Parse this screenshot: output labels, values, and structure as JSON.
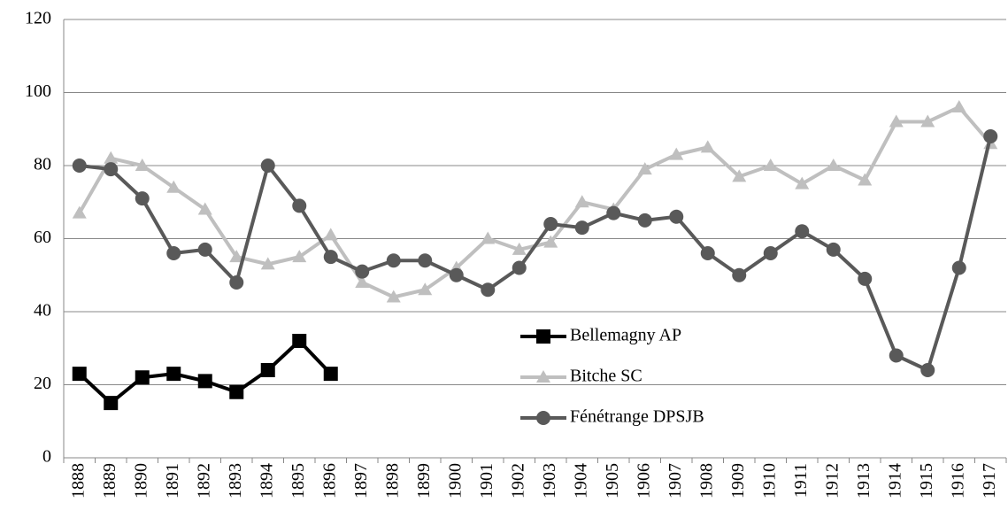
{
  "chart_data": {
    "type": "line",
    "categories": [
      "1888",
      "1889",
      "1890",
      "1891",
      "1892",
      "1893",
      "1894",
      "1895",
      "1896",
      "1897",
      "1898",
      "1899",
      "1900",
      "1901",
      "1902",
      "1903",
      "1904",
      "1905",
      "1906",
      "1907",
      "1908",
      "1909",
      "1910",
      "1911",
      "1912",
      "1913",
      "1914",
      "1915",
      "1916",
      "1917"
    ],
    "series": [
      {
        "name": "Bellemagny AP",
        "color": "#000000",
        "marker": "square",
        "values": [
          23,
          15,
          22,
          23,
          21,
          18,
          24,
          32,
          23,
          null,
          null,
          null,
          null,
          null,
          null,
          null,
          null,
          null,
          null,
          null,
          null,
          null,
          null,
          null,
          null,
          null,
          null,
          null,
          null,
          null
        ]
      },
      {
        "name": "Bitche SC",
        "color": "#bfbfbf",
        "marker": "triangle",
        "values": [
          67,
          82,
          80,
          74,
          68,
          55,
          53,
          55,
          61,
          48,
          44,
          46,
          52,
          60,
          57,
          59,
          70,
          68,
          79,
          83,
          85,
          77,
          80,
          75,
          80,
          76,
          92,
          92,
          96,
          86
        ]
      },
      {
        "name": "Fénétrange DPSJB",
        "color": "#595959",
        "marker": "circle",
        "values": [
          80,
          79,
          71,
          56,
          57,
          48,
          80,
          69,
          55,
          51,
          54,
          54,
          50,
          46,
          52,
          64,
          63,
          67,
          65,
          66,
          56,
          50,
          56,
          62,
          57,
          49,
          28,
          24,
          52,
          88
        ]
      }
    ],
    "ylim": [
      0,
      120
    ],
    "yticks": [
      0,
      20,
      40,
      60,
      80,
      100,
      120
    ],
    "grid": true
  }
}
